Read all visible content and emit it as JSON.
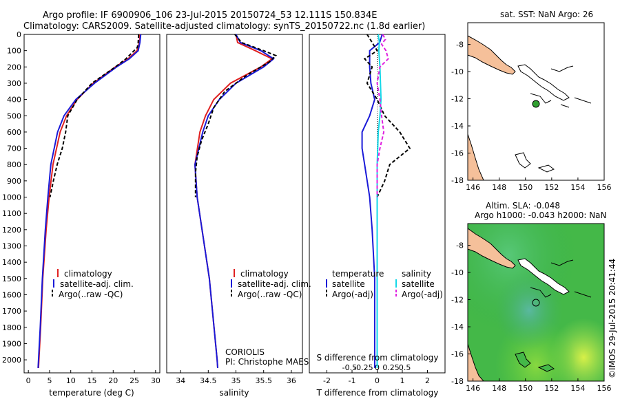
{
  "title_line1": "Argo profile: IF 6900906_106 23-Jul-2015 20150724_53 12.111S 150.834E",
  "title_line2": "Climatology: CARS2009. Satellite-adjusted climatology: synTS_20150722.nc (1.8d earlier)",
  "colors": {
    "climatology": "#e02020",
    "satellite": "#1a1ad8",
    "argo": "#000000",
    "sal_satellite": "#14d8e8",
    "sal_argo": "#e020e0",
    "land": "#f5c09a"
  },
  "depth_axis": {
    "ticks": [
      0,
      100,
      200,
      300,
      400,
      500,
      600,
      700,
      800,
      900,
      1000,
      1100,
      1200,
      1300,
      1400,
      1500,
      1600,
      1700,
      1800,
      1900,
      2000
    ],
    "ylim": [
      0,
      2080
    ]
  },
  "legend1": {
    "climatology": "climatology",
    "satellite": "satellite-adj. clim.",
    "argo": "Argo(..raw -QC)"
  },
  "legend3": {
    "temperature": "temperature",
    "salinity": "salinity",
    "t_sat": "satellite",
    "t_argo": "Argo(-adj)",
    "s_sat": "satellite",
    "s_argo": "Argo(-adj)"
  },
  "coriolis": {
    "line1": "CORIOLIS",
    "line2": "PI: Christophe MAES"
  },
  "panel3_s_label": "S difference from climatology",
  "map1": {
    "title": "sat. SST: NaN Argo: 26",
    "xticks": [
      146,
      148,
      150,
      152,
      154,
      156
    ],
    "yticks": [
      -8,
      -10,
      -12,
      -14,
      -16,
      -18
    ]
  },
  "map2": {
    "title1": "Altim. SLA: -0.048",
    "title2": "Argo h1000: -0.043 h2000: NaN",
    "xticks": [
      146,
      148,
      150,
      152,
      154,
      156
    ],
    "yticks": [
      -8,
      -10,
      -12,
      -14,
      -16,
      -18
    ]
  },
  "watermark": "©IMOS 29-Jul-2015 20:41:44",
  "chart_data": [
    {
      "type": "line",
      "xlabel": "temperature (deg C)",
      "xlim": [
        -1,
        31
      ],
      "xticks": [
        0,
        5,
        10,
        15,
        20,
        25,
        30
      ],
      "ylim": [
        0,
        2080
      ],
      "series": [
        {
          "name": "climatology",
          "depth": [
            0,
            50,
            100,
            150,
            200,
            300,
            400,
            500,
            600,
            800,
            1000,
            1200,
            1500,
            1800,
            2000,
            2050
          ],
          "values": [
            26.3,
            26.2,
            25.6,
            23.5,
            20.5,
            15.3,
            11.5,
            9.0,
            7.5,
            5.8,
            4.9,
            4.2,
            3.4,
            2.9,
            2.5,
            2.4
          ]
        },
        {
          "name": "satellite-adj. clim.",
          "depth": [
            0,
            50,
            100,
            150,
            200,
            300,
            400,
            500,
            600,
            800,
            1000,
            1200,
            1500,
            1800,
            2000,
            2050
          ],
          "values": [
            26.5,
            26.3,
            25.9,
            23.8,
            20.8,
            15.6,
            11.2,
            8.4,
            6.9,
            5.3,
            4.6,
            4.0,
            3.3,
            2.8,
            2.4,
            2.3
          ]
        },
        {
          "name": "Argo(..raw -QC)",
          "depth": [
            0,
            50,
            80,
            150,
            200,
            300,
            400,
            500,
            600,
            700,
            800,
            900,
            1000
          ],
          "values": [
            26.0,
            25.9,
            25.7,
            23.0,
            20.5,
            15.0,
            11.5,
            9.3,
            8.8,
            8.0,
            6.8,
            5.9,
            5.1
          ]
        }
      ]
    },
    {
      "type": "line",
      "xlabel": "salinity",
      "xlim": [
        33.75,
        36.2
      ],
      "xticks": [
        34,
        34.5,
        35,
        35.5,
        36
      ],
      "ylim": [
        0,
        2080
      ],
      "series": [
        {
          "name": "climatology",
          "depth": [
            0,
            50,
            100,
            150,
            200,
            300,
            400,
            500,
            600,
            800,
            1000,
            1500,
            2000,
            2050
          ],
          "values": [
            35.0,
            35.03,
            35.35,
            35.65,
            35.45,
            34.9,
            34.6,
            34.45,
            34.35,
            34.26,
            34.3,
            34.52,
            34.66,
            34.67
          ]
        },
        {
          "name": "satellite-adj. clim.",
          "depth": [
            0,
            50,
            100,
            150,
            200,
            300,
            400,
            500,
            600,
            800,
            1000,
            1500,
            2000,
            2050
          ],
          "values": [
            35.0,
            35.08,
            35.45,
            35.68,
            35.5,
            35.0,
            34.7,
            34.5,
            34.4,
            34.26,
            34.3,
            34.52,
            34.66,
            34.67
          ]
        },
        {
          "name": "Argo(..raw -QC)",
          "depth": [
            0,
            50,
            100,
            130,
            170,
            250,
            350,
            450,
            550,
            650,
            750,
            850,
            950,
            1000
          ],
          "values": [
            34.98,
            35.1,
            35.5,
            35.72,
            35.6,
            35.2,
            34.8,
            34.6,
            34.5,
            34.38,
            34.3,
            34.27,
            34.27,
            34.27
          ]
        }
      ]
    },
    {
      "type": "line",
      "xlabel": "T difference from climatology",
      "xlim": [
        -2.7,
        2.7
      ],
      "xticks": [
        -2,
        -1,
        0,
        1,
        2
      ],
      "s_axis": {
        "ticks": [
          -0.5,
          -0.25,
          0,
          0.25,
          0.5
        ],
        "tick_labels": [
          "-0.5",
          "-0.25",
          "0",
          "0.25",
          "0.5"
        ]
      },
      "ylim": [
        0,
        2080
      ],
      "series": [
        {
          "name": "temperature satellite",
          "depth": [
            0,
            50,
            100,
            200,
            300,
            400,
            500,
            600,
            700,
            800,
            1000,
            1200,
            1500,
            2000,
            2050
          ],
          "values": [
            0.2,
            0.1,
            -0.3,
            -0.3,
            -0.25,
            -0.1,
            -0.3,
            -0.6,
            -0.6,
            -0.5,
            -0.3,
            -0.2,
            -0.1,
            -0.1,
            -0.1
          ]
        },
        {
          "name": "temperature Argo(-adj)",
          "depth": [
            0,
            50,
            100,
            150,
            200,
            300,
            400,
            500,
            600,
            700,
            800,
            900,
            1000
          ],
          "values": [
            -0.4,
            -0.2,
            0.0,
            -0.5,
            -0.2,
            -0.4,
            0.0,
            0.3,
            0.9,
            1.3,
            0.5,
            0.3,
            0.0
          ]
        },
        {
          "name": "salinity satellite",
          "depth": [
            0,
            50,
            100,
            200,
            300,
            400,
            500,
            600,
            700,
            800,
            1000,
            1500,
            2000,
            2050
          ],
          "values": [
            0.02,
            0.04,
            0.03,
            0.05,
            0.06,
            0.07,
            0.05,
            0.02,
            0.01,
            0.0,
            0.0,
            0.0,
            0.0,
            0.0
          ]
        },
        {
          "name": "salinity Argo(-adj)",
          "depth": [
            0,
            30,
            60,
            100,
            150,
            200,
            300,
            400,
            500,
            600,
            700,
            800,
            1000
          ],
          "values": [
            0.1,
            0.15,
            0.08,
            0.16,
            0.2,
            0.05,
            0.0,
            0.05,
            0.08,
            0.12,
            0.05,
            0.0,
            0.0
          ]
        }
      ]
    }
  ]
}
